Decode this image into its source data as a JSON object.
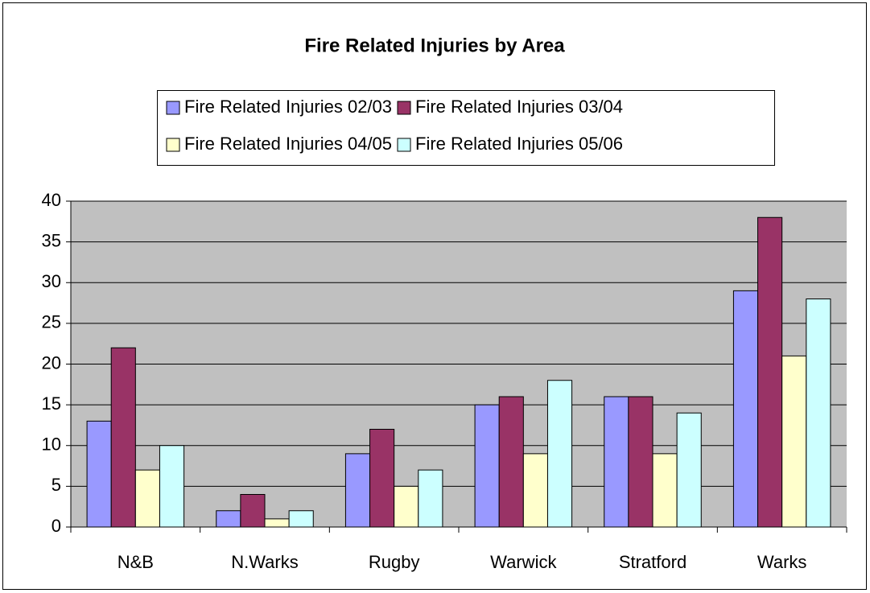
{
  "chart_data": {
    "type": "bar",
    "title": "Fire Related Injuries by Area",
    "categories": [
      "N&B",
      "N.Warks",
      "Rugby",
      "Warwick",
      "Stratford",
      "Warks"
    ],
    "series": [
      {
        "name": "Fire Related Injuries 02/03",
        "color": "#9999ff",
        "values": [
          13,
          2,
          9,
          15,
          16,
          29
        ]
      },
      {
        "name": "Fire Related Injuries 03/04",
        "color": "#993366",
        "values": [
          22,
          4,
          12,
          16,
          16,
          38
        ]
      },
      {
        "name": "Fire Related Injuries 04/05",
        "color": "#ffffcc",
        "values": [
          7,
          1,
          5,
          9,
          9,
          21
        ]
      },
      {
        "name": "Fire Related Injuries 05/06",
        "color": "#ccffff",
        "values": [
          10,
          2,
          7,
          18,
          14,
          28
        ]
      }
    ],
    "ylim": [
      0,
      40
    ],
    "yticks": [
      0,
      5,
      10,
      15,
      20,
      25,
      30,
      35,
      40
    ],
    "grid": true,
    "legend": "top"
  }
}
